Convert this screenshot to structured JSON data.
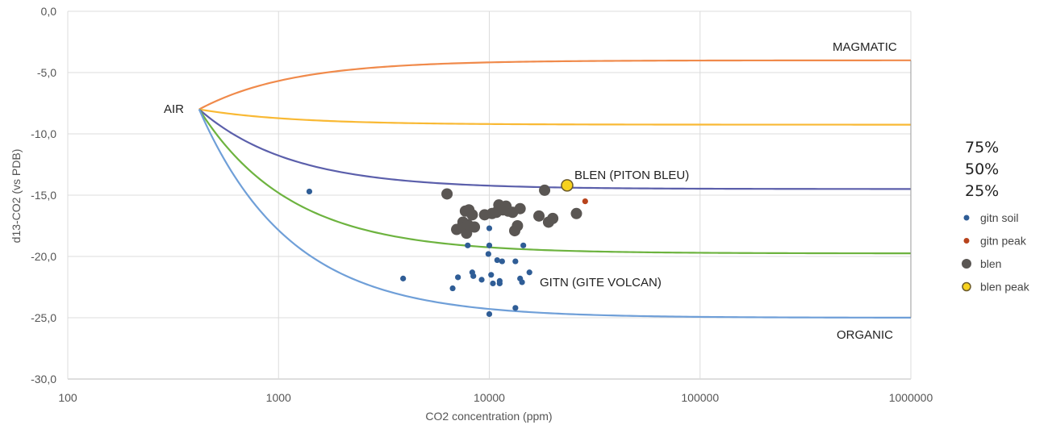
{
  "chart_data": {
    "type": "scatter",
    "xlabel": "CO2 concentration (ppm)",
    "ylabel": "d13-CO2 (vs PDB)",
    "xscale": "log",
    "xlim": [
      100,
      1000000
    ],
    "ylim": [
      -30,
      0
    ],
    "grid": true,
    "x_ticks": [
      "100",
      "1000",
      "10000",
      "100000",
      "1000000"
    ],
    "y_ticks": [
      "0,0",
      "-5,0",
      "-10,0",
      "-15,0",
      "-20,0",
      "-25,0",
      "-30,0"
    ],
    "mixing_percent_labels": [
      "75%",
      "50%",
      "25%"
    ],
    "annotations": {
      "air": "AIR",
      "magmatic": "MAGMATIC",
      "organic": "ORGANIC",
      "blen": "BLEN (PITON BLEU)",
      "gitn": "GITN (GITE VOLCAN)"
    },
    "mixing_curves": [
      {
        "end_member": "MAGMATIC",
        "color": "#f08a4b",
        "end_value": -4.0
      },
      {
        "end_member": "75%",
        "color": "#f9b934",
        "end_value": -9.25
      },
      {
        "end_member": "50%",
        "color": "#5b5fab",
        "end_value": -14.5
      },
      {
        "end_member": "25%",
        "color": "#6db33f",
        "end_value": -19.75
      },
      {
        "end_member": "ORGANIC",
        "color": "#6f9fd8",
        "end_value": -25.0
      }
    ],
    "air_end_member": {
      "x": 420,
      "y": -8.0
    },
    "series": [
      {
        "name": "gitn soil",
        "color": "#2f5d96",
        "size": "small",
        "points": [
          [
            1400,
            -14.7
          ],
          [
            3900,
            -21.8
          ],
          [
            6700,
            -22.6
          ],
          [
            7100,
            -21.7
          ],
          [
            7900,
            -19.1
          ],
          [
            8300,
            -21.3
          ],
          [
            8400,
            -21.6
          ],
          [
            9200,
            -21.9
          ],
          [
            9900,
            -19.8
          ],
          [
            10000,
            -17.7
          ],
          [
            10000,
            -19.1
          ],
          [
            10200,
            -21.5
          ],
          [
            10400,
            -22.2
          ],
          [
            10000,
            -24.7
          ],
          [
            10900,
            -20.3
          ],
          [
            11200,
            -22.2
          ],
          [
            11200,
            -22.0
          ],
          [
            11500,
            -20.4
          ],
          [
            13300,
            -20.4
          ],
          [
            14000,
            -21.8
          ],
          [
            14300,
            -22.1
          ],
          [
            14500,
            -19.1
          ],
          [
            15500,
            -21.3
          ],
          [
            13300,
            -24.2
          ]
        ]
      },
      {
        "name": "gitn peak",
        "color": "#b8431c",
        "size": "small",
        "points": [
          [
            28500,
            -15.5
          ]
        ]
      },
      {
        "name": "blen",
        "color": "#5a5653",
        "size": "large",
        "points": [
          [
            6300,
            -14.9
          ],
          [
            7000,
            -17.8
          ],
          [
            7400,
            -17.6
          ],
          [
            7500,
            -17.2
          ],
          [
            7700,
            -16.3
          ],
          [
            7800,
            -18.1
          ],
          [
            7900,
            -17.4
          ],
          [
            8000,
            -16.2
          ],
          [
            8300,
            -16.6
          ],
          [
            8500,
            -17.6
          ],
          [
            9500,
            -16.6
          ],
          [
            10300,
            -16.5
          ],
          [
            10800,
            -16.4
          ],
          [
            11100,
            -15.8
          ],
          [
            11600,
            -16.2
          ],
          [
            12000,
            -15.9
          ],
          [
            12300,
            -16.3
          ],
          [
            12900,
            -16.4
          ],
          [
            13200,
            -17.9
          ],
          [
            13600,
            -17.5
          ],
          [
            14000,
            -16.1
          ],
          [
            17200,
            -16.7
          ],
          [
            18300,
            -14.6
          ],
          [
            19100,
            -17.2
          ],
          [
            20000,
            -16.9
          ],
          [
            25900,
            -16.5
          ]
        ]
      },
      {
        "name": "blen peak",
        "color": "#f7d21e",
        "size": "large",
        "points": [
          [
            23400,
            -14.2
          ]
        ]
      }
    ]
  }
}
